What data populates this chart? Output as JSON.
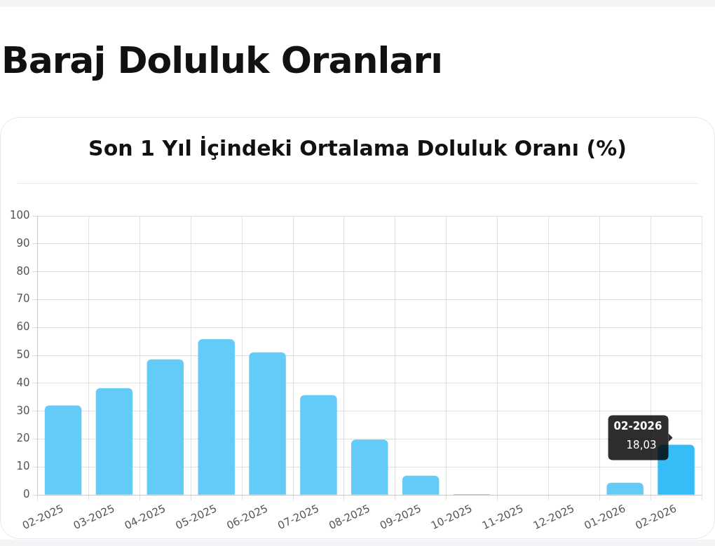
{
  "chart_data": {
    "type": "bar",
    "title": "Baraj Doluluk Oranları",
    "subtitle": "Son 1 Yıl İçindeki Ortalama Doluluk Oranı (%)",
    "categories": [
      "02-2025",
      "03-2025",
      "04-2025",
      "05-2025",
      "06-2025",
      "07-2025",
      "08-2025",
      "09-2025",
      "10-2025",
      "11-2025",
      "12-2025",
      "01-2026",
      "02-2026"
    ],
    "values": [
      32.1,
      38.3,
      48.6,
      55.8,
      51.1,
      35.8,
      19.8,
      6.9,
      0.3,
      0,
      0,
      4.4,
      18.03
    ],
    "colors": [
      "#63cbf8",
      "#63cbf8",
      "#63cbf8",
      "#63cbf8",
      "#63cbf8",
      "#63cbf8",
      "#63cbf8",
      "#63cbf8",
      "#63cbf8",
      "#63cbf8",
      "#63cbf8",
      "#63cbf8",
      "#36bdf7"
    ],
    "ylim": [
      0,
      100
    ],
    "yticks": [
      0,
      10,
      20,
      30,
      40,
      50,
      60,
      70,
      80,
      90,
      100
    ],
    "grid": true,
    "legend": false,
    "annotations": [
      {
        "text": "02-2026",
        "x": "02-2026",
        "y": 18.03
      },
      {
        "text": "18,03",
        "x": "02-2026",
        "y": 18.03
      }
    ]
  }
}
